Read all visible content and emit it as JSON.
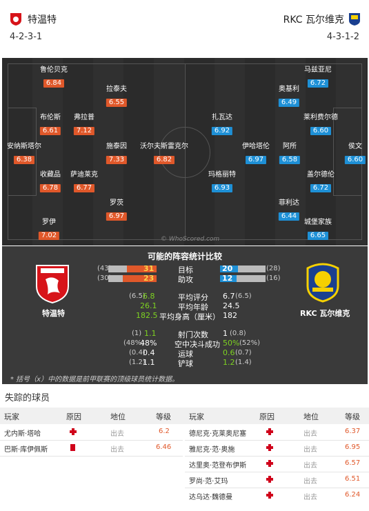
{
  "header": {
    "home_team": "特温特",
    "away_team": "RKC 瓦尔维克",
    "home_formation": "4-2-3-1",
    "away_formation": "4-3-1-2"
  },
  "pitch": {
    "watermark": "© WhoScored.com",
    "home_players": [
      {
        "name": "鲁伦贝克",
        "rating": "6.84"
      },
      {
        "name": "拉泰夫",
        "rating": "6.55"
      },
      {
        "name": "布伦斯",
        "rating": "6.61"
      },
      {
        "name": "弗拉普",
        "rating": "7.12"
      },
      {
        "name": "安纳斯塔尔",
        "rating": "6.38"
      },
      {
        "name": "施泰因",
        "rating": "7.33"
      },
      {
        "name": "沃尔夫斯雷克尔",
        "rating": "6.82"
      },
      {
        "name": "收藏品",
        "rating": "6.78"
      },
      {
        "name": "萨迪莱克",
        "rating": "6.77"
      },
      {
        "name": "罗茨",
        "rating": "6.97"
      },
      {
        "name": "罗伊",
        "rating": "7.02"
      }
    ],
    "away_players": [
      {
        "name": "马兹亚尼",
        "rating": "6.72"
      },
      {
        "name": "奥基利",
        "rating": "6.49"
      },
      {
        "name": "扎瓦达",
        "rating": "6.92"
      },
      {
        "name": "莱利费尔德",
        "rating": "6.60"
      },
      {
        "name": "伊哈塔伦",
        "rating": "6.97"
      },
      {
        "name": "阿所",
        "rating": "6.58"
      },
      {
        "name": "侯文",
        "rating": "6.60"
      },
      {
        "name": "玛格丽特",
        "rating": "6.93"
      },
      {
        "name": "盖尔德伦",
        "rating": "6.72"
      },
      {
        "name": "菲利达",
        "rating": "6.44"
      },
      {
        "name": "城堡家族",
        "rating": "6.65"
      }
    ]
  },
  "stats": {
    "title": "可能的阵容统计比较",
    "home_name": "特温特",
    "away_name": "RKC 瓦尔维克",
    "goals": {
      "label": "目标",
      "home": "31",
      "home_prev": "(43)",
      "away": "20",
      "away_prev": "(28)",
      "home_frac": 0.62,
      "away_frac": 0.4
    },
    "assists": {
      "label": "助攻",
      "home": "23",
      "home_prev": "(30)",
      "away": "12",
      "away_prev": "(16)",
      "home_frac": 0.7,
      "away_frac": 0.36
    },
    "rating": {
      "label": "平均评分",
      "home_prev": "(6.5)",
      "home": "6.8",
      "away": "6.7",
      "away_prev": "(6.5)"
    },
    "age": {
      "label": "平均年龄",
      "home": "26.1",
      "away": "24.5"
    },
    "height": {
      "label": "平均身高（厘米）",
      "home": "182.5",
      "away": "182"
    },
    "shots": {
      "label": "射门次数",
      "home_prev": "(1)",
      "home": "1.1",
      "away": "1",
      "away_prev": "(0.8)"
    },
    "aerial": {
      "label": "空中决斗成功",
      "home_prev": "(48%)",
      "home": "48%",
      "away": "50%",
      "away_prev": "(52%)"
    },
    "dribbles": {
      "label": "运球",
      "home_prev": "(0.4)",
      "home": "0.4",
      "away": "0.6",
      "away_prev": "(0.7)"
    },
    "tackles": {
      "label": "铲球",
      "home_prev": "(1.2)",
      "home": "1.1",
      "away": "1.2",
      "away_prev": "(1.4)"
    },
    "footnote": "* 括号（x）中的数据是前甲联赛的顶级球员统计数据。"
  },
  "missing": {
    "title": "失踪的球员",
    "headers": {
      "player": "玩家",
      "reason": "原因",
      "status": "地位",
      "rating": "等级"
    },
    "home": [
      {
        "name": "尤内斯·塔哈",
        "status": "出去",
        "rating": "6.2",
        "icon": "injury"
      },
      {
        "name": "巴斯·库伊佩斯",
        "status": "出去",
        "rating": "6.46",
        "icon": "red-card"
      }
    ],
    "away": [
      {
        "name": "德尼克·克莱奥尼塞",
        "status": "出去",
        "rating": "6.37"
      },
      {
        "name": "雅尼克·范·奥施",
        "status": "出去",
        "rating": "6.95"
      },
      {
        "name": "达里奥·范登布伊斯",
        "status": "出去",
        "rating": "6.57"
      },
      {
        "name": "罗尚·范·艾玛",
        "status": "出去",
        "rating": "6.51"
      },
      {
        "name": "达乌达·魏德曼",
        "status": "出去",
        "rating": "6.24"
      }
    ]
  },
  "colors": {
    "home": "#e0582a",
    "away": "#1e90d6",
    "pitch": "#2b2b2b"
  }
}
